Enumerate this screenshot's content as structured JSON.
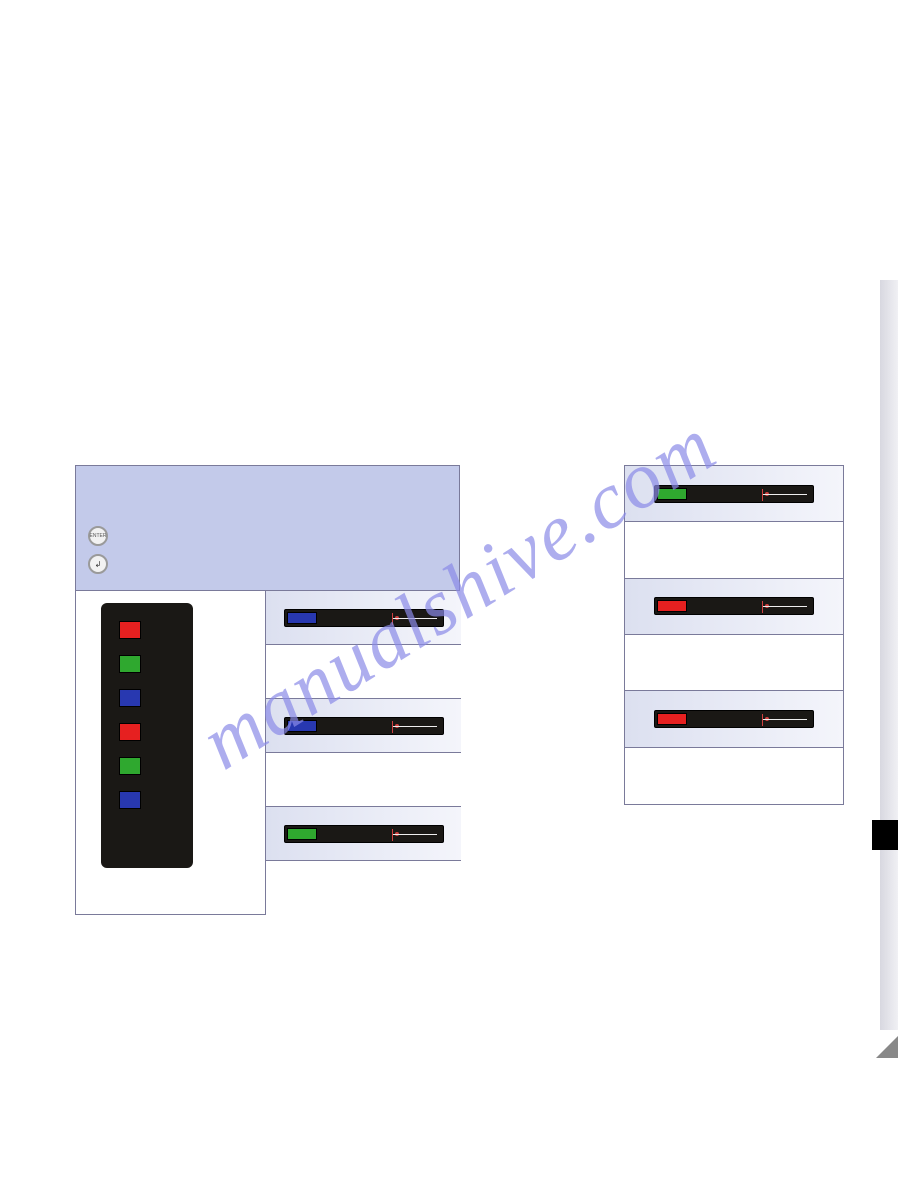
{
  "watermark": {
    "text": "manualshive.com",
    "color": "#8b8be8"
  },
  "colors": {
    "red": "#e62020",
    "green": "#2fa82f",
    "blue": "#2838b0",
    "bar_bg": "#1a1815",
    "panel_header_bg": "#c3caea",
    "row_light_start": "#dce0f0",
    "row_light_end": "#f4f5fb",
    "border": "#7a7a9a"
  },
  "left_panel": {
    "header_buttons": [
      {
        "name": "enter",
        "label": "ENTER"
      },
      {
        "name": "arrow",
        "label": "↲"
      }
    ],
    "indicator_column": [
      "red",
      "green",
      "blue",
      "red",
      "green",
      "blue"
    ],
    "rows": [
      {
        "bg": "light",
        "chip": "blue"
      },
      {
        "bg": "white",
        "chip": null
      },
      {
        "bg": "light",
        "chip": "blue"
      },
      {
        "bg": "white",
        "chip": null
      },
      {
        "bg": "light",
        "chip": "green"
      },
      {
        "bg": "white",
        "chip": null
      }
    ]
  },
  "right_panel": {
    "rows": [
      {
        "bg": "light",
        "chip": "green"
      },
      {
        "bg": "white",
        "chip": null
      },
      {
        "bg": "light",
        "chip": "red"
      },
      {
        "bg": "white",
        "chip": null
      },
      {
        "bg": "light",
        "chip": "red"
      },
      {
        "bg": "white",
        "chip": null
      }
    ]
  },
  "right_sidebar": {
    "gradient_bar": true,
    "black_tab": true
  }
}
